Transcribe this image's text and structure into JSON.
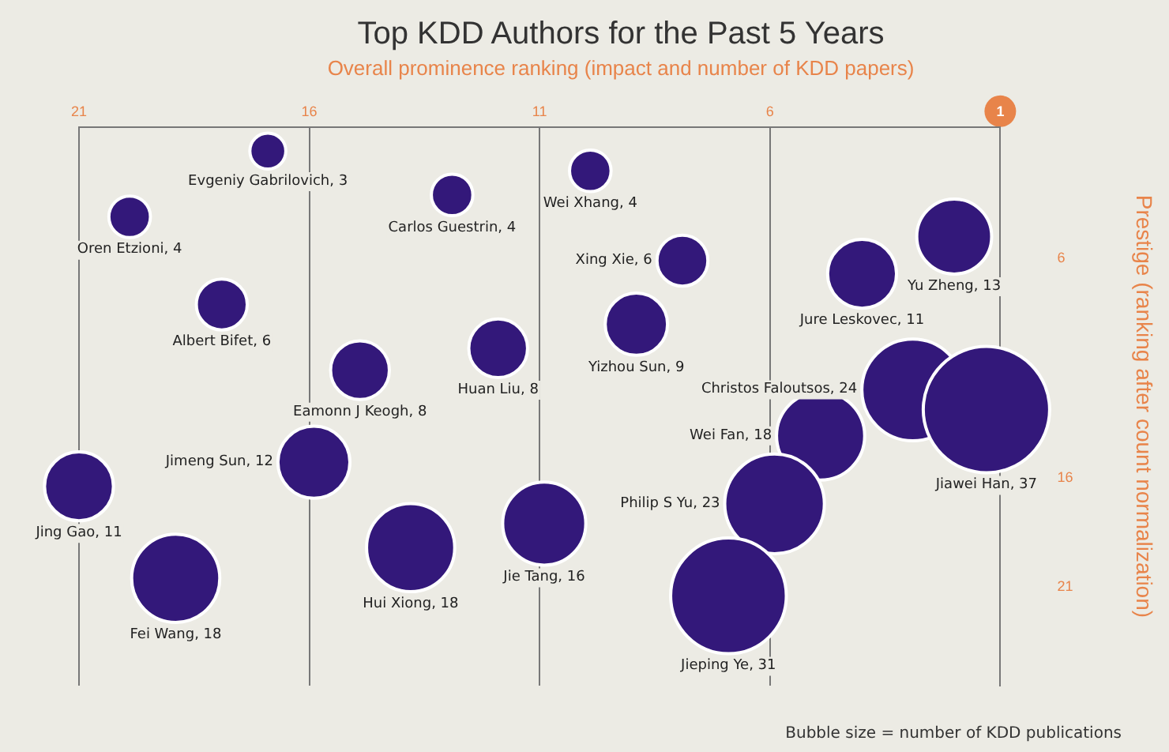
{
  "chart_data": {
    "type": "bubble",
    "title": "Top KDD Authors for the Past 5 Years",
    "subtitle": "Overall prominence ranking (impact and number of KDD papers)",
    "ylabel": "Prestige (ranking after count normalization)",
    "x": [
      16.9,
      19.9,
      12.9,
      9.9,
      7.9,
      2.0,
      4.0,
      17.9,
      8.9,
      11.9,
      14.9,
      2.9,
      1.3,
      4.9,
      15.9,
      21.0,
      5.9,
      10.9,
      13.8,
      18.9,
      6.9
    ],
    "series": [
      {
        "color": "#33187a",
        "values": [
          1.1,
          4.1,
          3.1,
          2.0,
          6.1,
          5.0,
          6.7,
          8.1,
          9.0,
          10.1,
          11.1,
          12.0,
          12.9,
          14.1,
          15.3,
          16.4,
          17.2,
          18.1,
          19.2,
          20.6,
          21.4
        ],
        "sizes": [
          3,
          4,
          4,
          4,
          6,
          13,
          11,
          6,
          9,
          8,
          8,
          24,
          37,
          18,
          12,
          11,
          23,
          16,
          18,
          18,
          31
        ],
        "value_labels": [
          "Evgeniy Gabrilovich, 3",
          "Oren Etzioni, 4",
          "Carlos Guestrin, 4",
          "Wei Xhang, 4",
          "Xing Xie, 6",
          "Yu Zheng, 13",
          "Jure Leskovec, 11",
          "Albert Bifet, 6",
          "Yizhou Sun, 9",
          "Huan Liu, 8",
          "Eamonn J Keogh, 8",
          "Christos Faloutsos, 24",
          "Jiawei Han, 37",
          "Wei Fan, 18",
          "Jimeng Sun, 12",
          "Jing Gao, 11",
          "Philip S Yu, 23",
          "Jie Tang, 16",
          "Hui Xiong, 18",
          "Fei Wang, 18",
          "Jieping Ye, 31"
        ]
      }
    ],
    "xlim": [
      21,
      1
    ],
    "xticks": [
      21,
      16,
      11,
      6,
      1
    ],
    "ylim": [
      25.5,
      0
    ],
    "yticks": [
      6,
      16,
      21
    ],
    "grid": "x",
    "legend": false,
    "annotations": [
      "Bubble size = number of KDD publications"
    ]
  }
}
